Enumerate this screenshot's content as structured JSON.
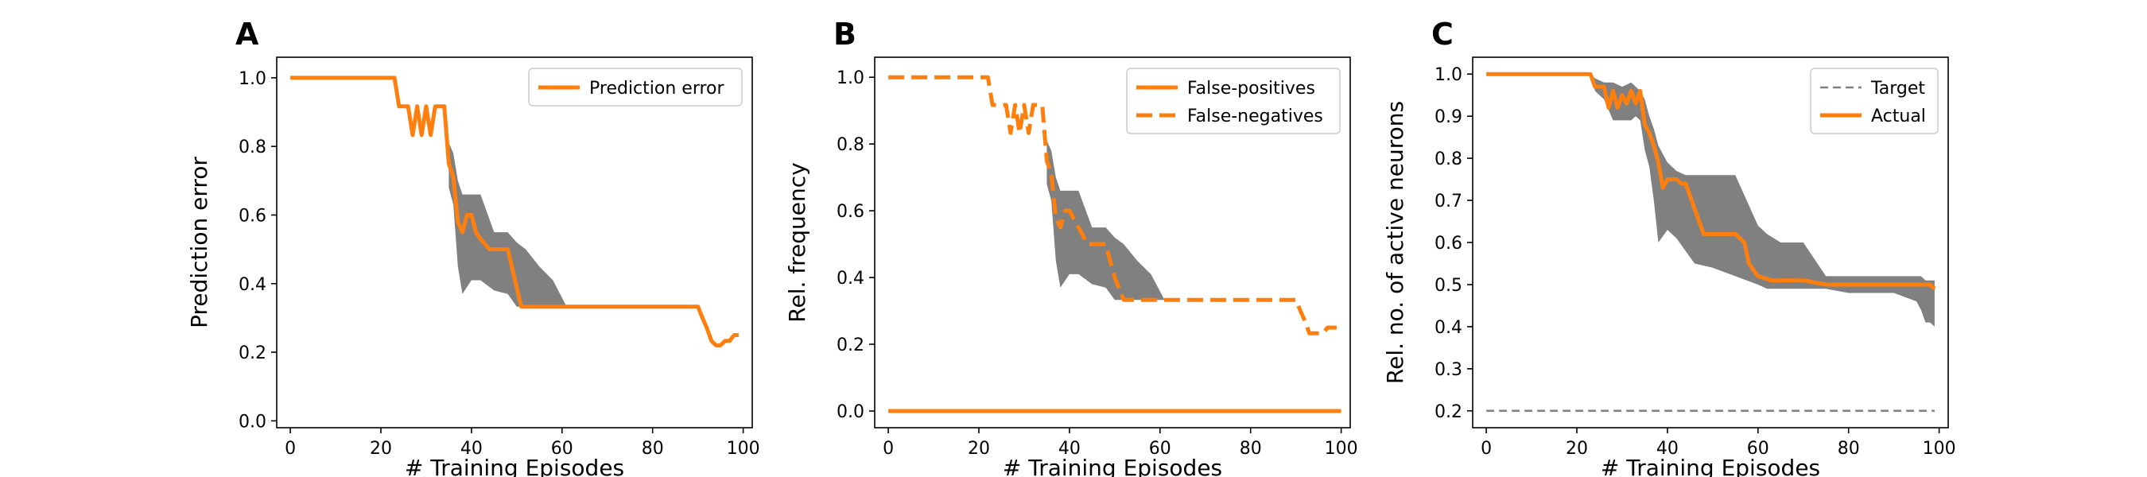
{
  "figure": {
    "panels": [
      "A",
      "B",
      "C"
    ]
  },
  "colors": {
    "orange": "#ff7f0e",
    "band": "#808080",
    "target": "#808080",
    "axis": "#000000"
  },
  "chart_data": [
    {
      "type": "line",
      "panel": "A",
      "xlabel": "# Training Episodes",
      "ylabel": "Prediction error",
      "xlim": [
        -3,
        102
      ],
      "ylim": [
        -0.02,
        1.06
      ],
      "xticks": [
        0,
        20,
        40,
        60,
        80,
        100
      ],
      "yticks": [
        0.0,
        0.2,
        0.4,
        0.6,
        0.8,
        1.0
      ],
      "ytick_labels": [
        "0.0",
        "0.2",
        "0.4",
        "0.6",
        "0.8",
        "1.0"
      ],
      "legend_position": "top-right",
      "series": [
        {
          "name": "Prediction error",
          "style": "solid",
          "x": [
            0,
            23,
            24,
            26,
            27,
            28,
            29,
            30,
            31,
            32,
            33,
            34,
            35,
            36,
            37,
            38,
            39,
            40,
            41,
            42,
            44,
            48,
            51,
            60,
            70,
            80,
            90,
            91,
            92,
            93,
            94,
            95,
            96,
            97,
            98,
            99
          ],
          "y": [
            1.0,
            1.0,
            0.917,
            0.917,
            0.833,
            0.917,
            0.833,
            0.917,
            0.833,
            0.917,
            0.917,
            0.917,
            0.75,
            0.71,
            0.58,
            0.55,
            0.6,
            0.6,
            0.55,
            0.53,
            0.5,
            0.5,
            0.333,
            0.333,
            0.333,
            0.333,
            0.333,
            0.3,
            0.27,
            0.233,
            0.22,
            0.22,
            0.233,
            0.233,
            0.25,
            0.25
          ]
        }
      ],
      "band": {
        "x": [
          35,
          36,
          37,
          38,
          40,
          42,
          45,
          48,
          50,
          52,
          55,
          58,
          61,
          62,
          64,
          66,
          70,
          75,
          80,
          85,
          88,
          89,
          90,
          93,
          96,
          99
        ],
        "upper": [
          0.81,
          0.78,
          0.7,
          0.66,
          0.66,
          0.66,
          0.55,
          0.55,
          0.52,
          0.5,
          0.45,
          0.41,
          0.333,
          0.333,
          0.333,
          0.333,
          0.333,
          0.333,
          0.333,
          0.333,
          0.333,
          0.333,
          0.333,
          0.333,
          0.333,
          0.333
        ],
        "lower": [
          0.68,
          0.63,
          0.45,
          0.37,
          0.41,
          0.41,
          0.38,
          0.37,
          0.333,
          0.333,
          0.333,
          0.333,
          0.333,
          0.333,
          0.333,
          0.333,
          0.333,
          0.333,
          0.333,
          0.333,
          0.333,
          0.333,
          0.333,
          0.333,
          0.333,
          0.333
        ]
      }
    },
    {
      "type": "line",
      "panel": "B",
      "xlabel": "# Training Episodes",
      "ylabel": "Rel. frequency",
      "xlim": [
        -3,
        102
      ],
      "ylim": [
        -0.05,
        1.06
      ],
      "xticks": [
        0,
        20,
        40,
        60,
        80,
        100
      ],
      "yticks": [
        0.0,
        0.2,
        0.4,
        0.6,
        0.8,
        1.0
      ],
      "ytick_labels": [
        "0.0",
        "0.2",
        "0.4",
        "0.6",
        "0.8",
        "1.0"
      ],
      "legend_position": "top-right",
      "series": [
        {
          "name": "False-positives",
          "style": "solid",
          "x": [
            0,
            100
          ],
          "y": [
            0.0,
            0.0
          ]
        },
        {
          "name": "False-negatives",
          "style": "dashed",
          "x": [
            0,
            22,
            23,
            26,
            27,
            28,
            29,
            30,
            31,
            32,
            33,
            34,
            35,
            36,
            37,
            38,
            39,
            40,
            42,
            44,
            48,
            50,
            52,
            60,
            70,
            80,
            90,
            91,
            92,
            93,
            94,
            96,
            97,
            98,
            99
          ],
          "y": [
            1.0,
            1.0,
            0.917,
            0.917,
            0.833,
            0.917,
            0.833,
            0.917,
            0.833,
            0.917,
            0.917,
            0.917,
            0.75,
            0.71,
            0.58,
            0.55,
            0.6,
            0.6,
            0.55,
            0.5,
            0.5,
            0.4,
            0.333,
            0.333,
            0.333,
            0.333,
            0.333,
            0.3,
            0.27,
            0.233,
            0.233,
            0.233,
            0.25,
            0.25,
            0.25
          ]
        }
      ],
      "band": {
        "x": [
          35,
          36,
          37,
          38,
          40,
          42,
          45,
          48,
          50,
          52,
          55,
          58,
          61,
          62,
          64,
          66,
          70,
          75,
          80,
          85,
          88,
          89,
          90,
          93,
          96,
          99
        ],
        "upper": [
          0.81,
          0.78,
          0.7,
          0.66,
          0.66,
          0.66,
          0.55,
          0.55,
          0.52,
          0.5,
          0.45,
          0.41,
          0.333,
          0.333,
          0.333,
          0.333,
          0.333,
          0.333,
          0.333,
          0.333,
          0.333,
          0.333,
          0.333,
          0.333,
          0.333,
          0.333
        ],
        "lower": [
          0.68,
          0.63,
          0.45,
          0.37,
          0.41,
          0.41,
          0.38,
          0.37,
          0.333,
          0.333,
          0.333,
          0.333,
          0.333,
          0.333,
          0.333,
          0.333,
          0.333,
          0.333,
          0.333,
          0.333,
          0.333,
          0.333,
          0.333,
          0.333,
          0.333,
          0.333
        ]
      }
    },
    {
      "type": "line",
      "panel": "C",
      "xlabel": "# Training Episodes",
      "ylabel": "Rel. no. of active neurons",
      "xlim": [
        -3,
        102
      ],
      "ylim": [
        0.16,
        1.04
      ],
      "xticks": [
        0,
        20,
        40,
        60,
        80,
        100
      ],
      "yticks": [
        0.2,
        0.3,
        0.4,
        0.5,
        0.6,
        0.7,
        0.8,
        0.9,
        1.0
      ],
      "ytick_labels": [
        "0.2",
        "0.3",
        "0.4",
        "0.5",
        "0.6",
        "0.7",
        "0.8",
        "0.9",
        "1.0"
      ],
      "legend_position": "top-right",
      "series": [
        {
          "name": "Target",
          "style": "dashed-thin",
          "x": [
            0,
            99
          ],
          "y": [
            0.2,
            0.2
          ]
        },
        {
          "name": "Actual",
          "style": "solid",
          "x": [
            0,
            23,
            24,
            26,
            27,
            28,
            29,
            30,
            31,
            32,
            33,
            34,
            35,
            36,
            37,
            38,
            39,
            40,
            42,
            43,
            44,
            48,
            50,
            55,
            57,
            58,
            60,
            63,
            65,
            70,
            75,
            80,
            90,
            95,
            98,
            99
          ],
          "y": [
            1.0,
            1.0,
            0.97,
            0.97,
            0.92,
            0.96,
            0.92,
            0.95,
            0.93,
            0.96,
            0.93,
            0.96,
            0.88,
            0.86,
            0.83,
            0.79,
            0.73,
            0.75,
            0.75,
            0.74,
            0.74,
            0.62,
            0.62,
            0.62,
            0.6,
            0.55,
            0.52,
            0.51,
            0.51,
            0.51,
            0.5,
            0.5,
            0.5,
            0.5,
            0.5,
            0.49
          ]
        }
      ],
      "band": {
        "x": [
          23,
          24,
          26,
          28,
          30,
          32,
          33,
          34,
          35,
          36,
          37,
          38,
          40,
          42,
          44,
          46,
          50,
          55,
          60,
          62,
          65,
          70,
          75,
          80,
          85,
          90,
          95,
          96,
          97,
          98,
          99
        ],
        "upper": [
          1.0,
          0.99,
          0.98,
          0.98,
          0.97,
          0.98,
          0.97,
          0.96,
          0.94,
          0.9,
          0.87,
          0.83,
          0.79,
          0.77,
          0.76,
          0.76,
          0.76,
          0.76,
          0.64,
          0.62,
          0.6,
          0.6,
          0.52,
          0.52,
          0.52,
          0.52,
          0.52,
          0.52,
          0.51,
          0.51,
          0.51
        ],
        "lower": [
          1.0,
          0.96,
          0.94,
          0.89,
          0.89,
          0.89,
          0.9,
          0.89,
          0.82,
          0.78,
          0.7,
          0.6,
          0.63,
          0.61,
          0.58,
          0.55,
          0.54,
          0.52,
          0.5,
          0.49,
          0.49,
          0.49,
          0.49,
          0.48,
          0.48,
          0.48,
          0.46,
          0.44,
          0.41,
          0.41,
          0.4
        ]
      }
    }
  ]
}
